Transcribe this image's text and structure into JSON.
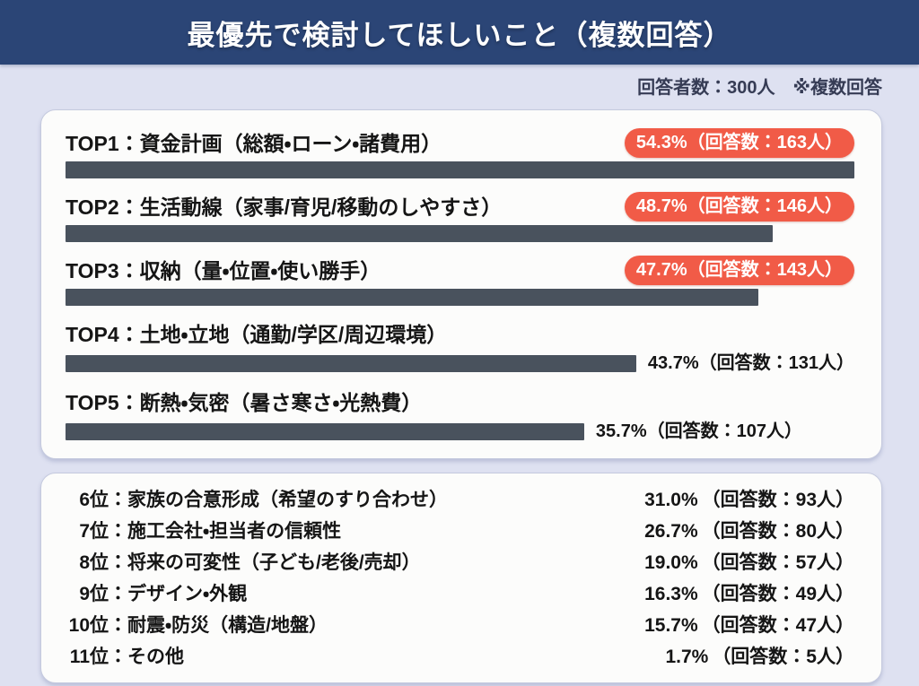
{
  "header": {
    "title": "最優先で検討してほしいこと（複数回答）"
  },
  "meta": {
    "respondents_label": "回答者数：300人",
    "note": "※複数回答"
  },
  "strings": {
    "colon": "："
  },
  "colors": {
    "header_bg": "#2b4576",
    "page_bg": "#dee1f1",
    "bar": "#49525d",
    "badge_bg": "#f15b47",
    "badge_text": "#ffffff",
    "text": "#151515"
  },
  "chart_data": {
    "type": "bar",
    "title": "最優先で検討してほしいこと（複数回答）",
    "respondents": 300,
    "note": "複数回答",
    "unit": "%",
    "bar_scale_max_percent": 54.3,
    "legend_position": "none",
    "grid": false,
    "top_items": [
      {
        "rank": "TOP1",
        "label": "資金計画（総額・ローン・諸費用）",
        "percent": 54.3,
        "count": 163,
        "value_text": "54.3%（回答数：163人）",
        "badge": true
      },
      {
        "rank": "TOP2",
        "label": "生活動線（家事/育児/移動のしやすさ）",
        "percent": 48.7,
        "count": 146,
        "value_text": "48.7%（回答数：146人）",
        "badge": true
      },
      {
        "rank": "TOP3",
        "label": "収納（量・位置・使い勝手）",
        "percent": 47.7,
        "count": 143,
        "value_text": "47.7%（回答数：143人）",
        "badge": true
      },
      {
        "rank": "TOP4",
        "label": "土地・立地（通勤/学区/周辺環境）",
        "percent": 43.7,
        "count": 131,
        "value_text": "43.7%（回答数：131人）",
        "badge": false
      },
      {
        "rank": "TOP5",
        "label": "断熱・気密（暑さ寒さ・光熱費）",
        "percent": 35.7,
        "count": 107,
        "value_text": "35.7%（回答数：107人）",
        "badge": false
      }
    ],
    "other_items": [
      {
        "rank": "6位",
        "label": "家族の合意形成（希望のすり合わせ）",
        "percent": 31.0,
        "count": 93,
        "percent_text": "31.0%",
        "count_text": "（回答数：93人）"
      },
      {
        "rank": "7位",
        "label": "施工会社・担当者の信頼性",
        "percent": 26.7,
        "count": 80,
        "percent_text": "26.7%",
        "count_text": "（回答数：80人）"
      },
      {
        "rank": "8位",
        "label": "将来の可変性（子ども/老後/売却）",
        "percent": 19.0,
        "count": 57,
        "percent_text": "19.0%",
        "count_text": "（回答数：57人）"
      },
      {
        "rank": "9位",
        "label": "デザイン・外観",
        "percent": 16.3,
        "count": 49,
        "percent_text": "16.3%",
        "count_text": "（回答数：49人）"
      },
      {
        "rank": "10位",
        "label": "耐震・防災（構造/地盤）",
        "percent": 15.7,
        "count": 47,
        "percent_text": "15.7%",
        "count_text": "（回答数：47人）"
      },
      {
        "rank": "11位",
        "label": "その他",
        "percent": 1.7,
        "count": 5,
        "percent_text": "1.7%",
        "count_text": "（回答数：5人）"
      }
    ]
  }
}
